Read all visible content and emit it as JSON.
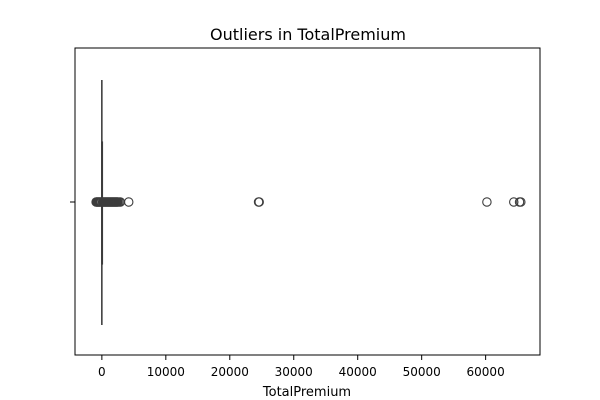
{
  "chart_data": {
    "type": "boxplot",
    "orientation": "horizontal",
    "title": "Outliers in TotalPremium",
    "xlabel": "TotalPremium",
    "ylabel": "",
    "xlim": [
      -4200,
      68500
    ],
    "xticks": [
      0,
      10000,
      20000,
      30000,
      40000,
      50000,
      60000
    ],
    "xtick_labels": [
      "0",
      "10000",
      "20000",
      "30000",
      "40000",
      "50000",
      "60000"
    ],
    "grid": false,
    "box": {
      "whisker_low": 0,
      "q1": 0,
      "median": 0,
      "q3": 0,
      "whisker_high": 0
    },
    "outliers": [
      -900,
      -800,
      -700,
      -600,
      -500,
      -400,
      -300,
      -200,
      -100,
      100,
      200,
      300,
      400,
      500,
      600,
      700,
      800,
      900,
      1000,
      1100,
      1200,
      1300,
      1400,
      1500,
      1600,
      1700,
      1800,
      1900,
      2000,
      2100,
      2200,
      2300,
      2400,
      2500,
      2700,
      2900,
      4200,
      24500,
      24600,
      60200,
      64400,
      65300,
      65500
    ],
    "colors": {
      "line": "#3d3d3d",
      "marker_edge": "#3d3d3d",
      "axes": "#000000",
      "background": "#ffffff"
    }
  }
}
